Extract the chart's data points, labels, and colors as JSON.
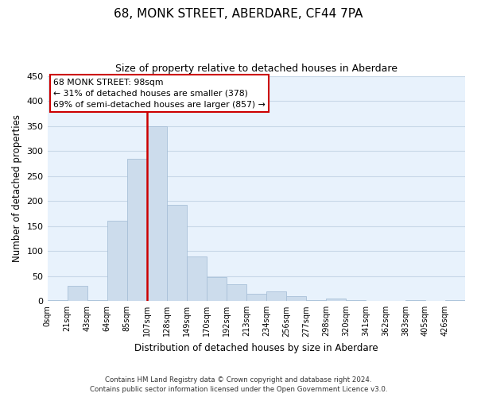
{
  "title": "68, MONK STREET, ABERDARE, CF44 7PA",
  "subtitle": "Size of property relative to detached houses in Aberdare",
  "xlabel": "Distribution of detached houses by size in Aberdare",
  "ylabel": "Number of detached properties",
  "bin_labels": [
    "0sqm",
    "21sqm",
    "43sqm",
    "64sqm",
    "85sqm",
    "107sqm",
    "128sqm",
    "149sqm",
    "170sqm",
    "192sqm",
    "213sqm",
    "234sqm",
    "256sqm",
    "277sqm",
    "298sqm",
    "320sqm",
    "341sqm",
    "362sqm",
    "383sqm",
    "405sqm",
    "426sqm"
  ],
  "bar_heights": [
    2,
    30,
    2,
    160,
    285,
    350,
    192,
    90,
    48,
    34,
    15,
    20,
    10,
    2,
    5,
    2,
    0,
    0,
    2,
    0,
    2
  ],
  "bar_color": "#ccdcec",
  "bar_edge_color": "#a8c0d8",
  "vline_x": 5,
  "vline_color": "#cc0000",
  "annotation_title": "68 MONK STREET: 98sqm",
  "annotation_line1": "← 31% of detached houses are smaller (378)",
  "annotation_line2": "69% of semi-detached houses are larger (857) →",
  "ylim": [
    0,
    450
  ],
  "yticks": [
    0,
    50,
    100,
    150,
    200,
    250,
    300,
    350,
    400,
    450
  ],
  "footer_line1": "Contains HM Land Registry data © Crown copyright and database right 2024.",
  "footer_line2": "Contains public sector information licensed under the Open Government Licence v3.0.",
  "bg_color": "#ffffff",
  "plot_bg_color": "#e8f2fc",
  "grid_color": "#c8d8e8"
}
